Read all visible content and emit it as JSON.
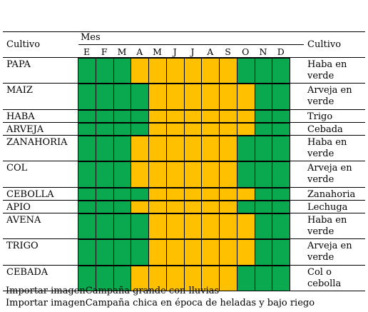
{
  "table": {
    "header": {
      "left_label": "Cultivo",
      "right_label": "Cultivo",
      "month_group": "Mes",
      "months": [
        "E",
        "F",
        "M",
        "A",
        "M",
        "J",
        "J",
        "A",
        "S",
        "O",
        "N",
        "D"
      ]
    },
    "colors": {
      "green": "#0aa84f",
      "yellow": "#ffc000",
      "grid": "#000000"
    },
    "rows": [
      {
        "crop": "PAPA",
        "next": [
          "Haba en",
          "verde"
        ],
        "pattern": "GGGYYYYYYGGG"
      },
      {
        "crop": "MAIZ",
        "next": [
          "Arveja en",
          "verde"
        ],
        "pattern": "GGGGYYYYYYGG"
      },
      {
        "crop": "HABA",
        "next": [
          "Trigo"
        ],
        "pattern": "GGGGYYYYYYGG"
      },
      {
        "crop": "ARVEJA",
        "next": [
          "Cebada"
        ],
        "pattern": "GGGGYYYYYYGG"
      },
      {
        "crop": "ZANAHORIA",
        "next": [
          "Haba en",
          "verde"
        ],
        "pattern": "GGGYYYYYYGGG"
      },
      {
        "crop": "COL",
        "next": [
          "Arveja en",
          "verde"
        ],
        "pattern": "GGGYYYYYYGGG"
      },
      {
        "crop": "CEBOLLA",
        "next": [
          "Zanahoria"
        ],
        "pattern": "GGGGYYYYYYGG"
      },
      {
        "crop": "APIO",
        "next": [
          "Lechuga"
        ],
        "pattern": "GGGYYYYYYGGG"
      },
      {
        "crop": "AVENA",
        "next": [
          "Haba en",
          "verde"
        ],
        "pattern": "GGGGYYYYYYGG"
      },
      {
        "crop": "TRIGO",
        "next": [
          "Arveja en",
          "verde"
        ],
        "pattern": "GGGGYYYYYYGG"
      },
      {
        "crop": "CEBADA",
        "next": [
          "Col o",
          "cebolla"
        ],
        "pattern": "GGGYYYYYYGGG"
      }
    ]
  },
  "legend": [
    "Importar imagenCampaña grande con lluvias",
    "Importar imagenCampaña chica en época de heladas y bajo riego"
  ]
}
